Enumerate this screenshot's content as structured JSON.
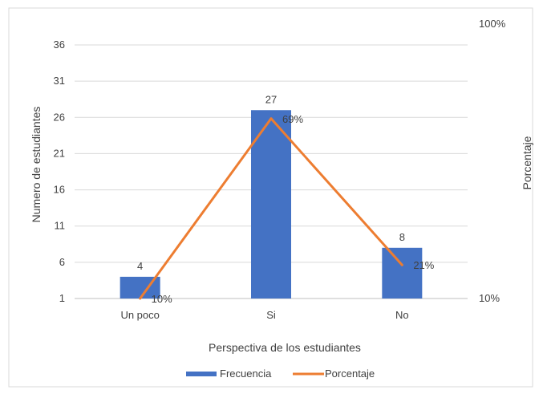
{
  "chart_data": {
    "type": "bar",
    "title": "",
    "xlabel": "Perspectiva de los estudiantes",
    "ylabel": "Numero de estudiantes",
    "y2label": "Porcentaje",
    "categories": [
      "Un poco",
      "Si",
      "No"
    ],
    "ylim": [
      1,
      36
    ],
    "yticks": [
      1,
      6,
      11,
      16,
      21,
      26,
      31,
      36
    ],
    "y2lim": [
      10,
      100
    ],
    "y2ticks": [
      "10%",
      "100%"
    ],
    "grid": true,
    "legend_position": "bottom",
    "series": [
      {
        "name": "Frecuencia",
        "type": "bar",
        "color": "#4472C4",
        "values": [
          4,
          27,
          8
        ],
        "labels": [
          "4",
          "27",
          "8"
        ]
      },
      {
        "name": "Porcentaje",
        "type": "line",
        "color": "#ED7D31",
        "values": [
          10,
          69,
          21
        ],
        "labels": [
          "10%",
          "69%",
          "21%"
        ]
      }
    ]
  }
}
